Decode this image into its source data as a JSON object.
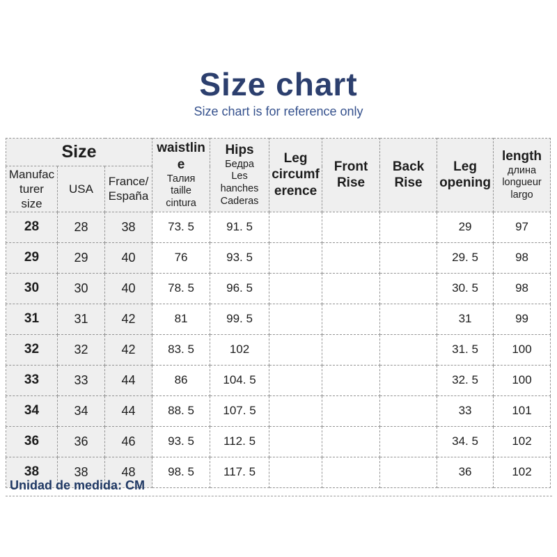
{
  "page": {
    "title": "Size chart",
    "subtitle": "Size chart is for reference only",
    "footer_note": "Unidad de medida: CM"
  },
  "colors": {
    "title_blue": "#2c3f6e",
    "subtitle_blue": "#35518d",
    "footer_navy": "#1f3864",
    "header_background": "#efefef",
    "border_gray": "#949494",
    "text_dark": "#1c1c1c"
  },
  "chart_data": {
    "type": "table",
    "title": "Size chart",
    "subtitle": "Size chart is for reference only",
    "unit_note": "Unidad de medida: CM",
    "header": {
      "size_group_label": "Size",
      "size_columns": [
        "Manufacturer size",
        "USA",
        "France/España"
      ],
      "measure_columns": [
        {
          "label": "waistline",
          "translations": [
            "Талия",
            "taille",
            "cintura"
          ]
        },
        {
          "label": "Hips",
          "translations": [
            "Бедра",
            "Les hanches",
            "Caderas"
          ]
        },
        {
          "label": "Leg circumference",
          "translations": []
        },
        {
          "label": "Front Rise",
          "translations": []
        },
        {
          "label": "Back Rise",
          "translations": []
        },
        {
          "label": "Leg opening",
          "translations": []
        },
        {
          "label": "length",
          "translations": [
            "длина",
            "longueur",
            "largo"
          ]
        }
      ]
    },
    "rows": [
      {
        "size": "28",
        "usa": "28",
        "france_espana": "38",
        "waistline": "73. 5",
        "hips": "91. 5",
        "leg_circumference": "",
        "front_rise": "",
        "back_rise": "",
        "leg_opening": "29",
        "length": "97"
      },
      {
        "size": "29",
        "usa": "29",
        "france_espana": "40",
        "waistline": "76",
        "hips": "93. 5",
        "leg_circumference": "",
        "front_rise": "",
        "back_rise": "",
        "leg_opening": "29. 5",
        "length": "98"
      },
      {
        "size": "30",
        "usa": "30",
        "france_espana": "40",
        "waistline": "78. 5",
        "hips": "96. 5",
        "leg_circumference": "",
        "front_rise": "",
        "back_rise": "",
        "leg_opening": "30. 5",
        "length": "98"
      },
      {
        "size": "31",
        "usa": "31",
        "france_espana": "42",
        "waistline": "81",
        "hips": "99. 5",
        "leg_circumference": "",
        "front_rise": "",
        "back_rise": "",
        "leg_opening": "31",
        "length": "99"
      },
      {
        "size": "32",
        "usa": "32",
        "france_espana": "42",
        "waistline": "83. 5",
        "hips": "102",
        "leg_circumference": "",
        "front_rise": "",
        "back_rise": "",
        "leg_opening": "31. 5",
        "length": "100"
      },
      {
        "size": "33",
        "usa": "33",
        "france_espana": "44",
        "waistline": "86",
        "hips": "104. 5",
        "leg_circumference": "",
        "front_rise": "",
        "back_rise": "",
        "leg_opening": "32. 5",
        "length": "100"
      },
      {
        "size": "34",
        "usa": "34",
        "france_espana": "44",
        "waistline": "88. 5",
        "hips": "107. 5",
        "leg_circumference": "",
        "front_rise": "",
        "back_rise": "",
        "leg_opening": "33",
        "length": "101"
      },
      {
        "size": "36",
        "usa": "36",
        "france_espana": "46",
        "waistline": "93. 5",
        "hips": "112. 5",
        "leg_circumference": "",
        "front_rise": "",
        "back_rise": "",
        "leg_opening": "34. 5",
        "length": "102"
      },
      {
        "size": "38",
        "usa": "38",
        "france_espana": "48",
        "waistline": "98. 5",
        "hips": "117. 5",
        "leg_circumference": "",
        "front_rise": "",
        "back_rise": "",
        "leg_opening": "36",
        "length": "102"
      }
    ]
  }
}
